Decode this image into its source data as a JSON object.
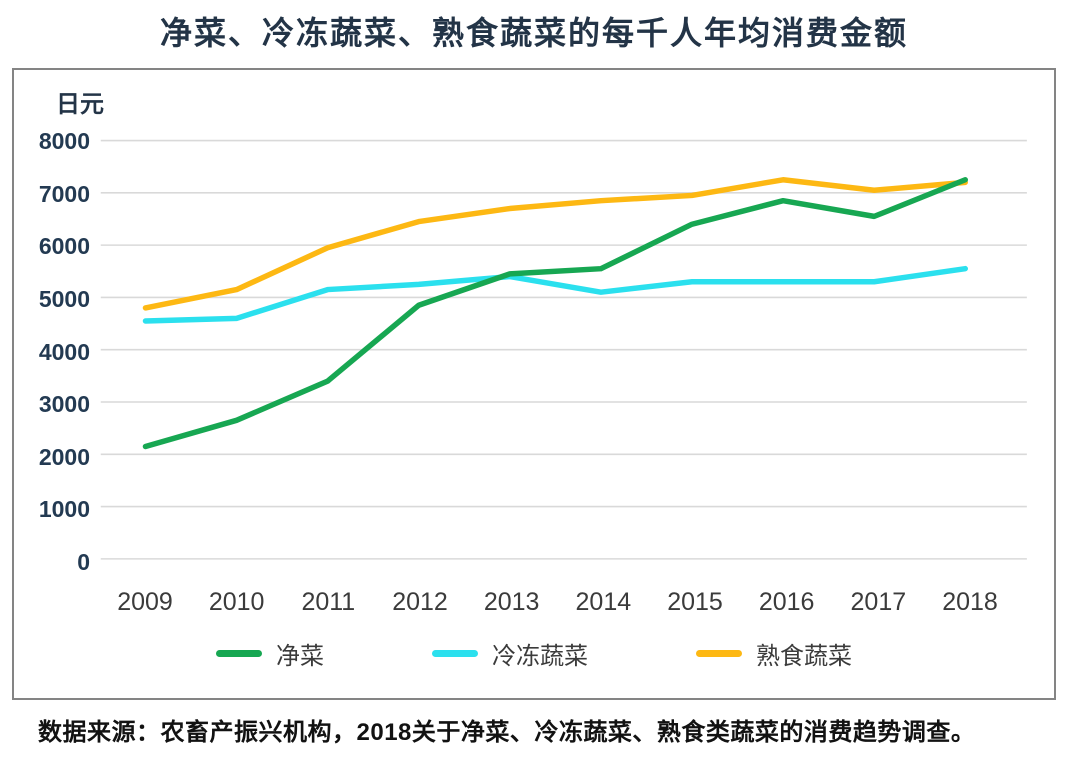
{
  "title": "净菜、冷冻蔬菜、熟食蔬菜的每千人年均消费金额",
  "source": "数据来源：农畜产振兴机构，2018关于净菜、冷冻蔬菜、熟食类蔬菜的消费趋势调查。",
  "colors": {
    "title_text": "#233447",
    "y_axis_text": "#233a52",
    "x_axis_text": "#3b3b3b",
    "grid": "#d9d9d9",
    "frame_border": "#848484",
    "series_green": "#17a752",
    "series_cyan": "#2be0ee",
    "series_yellow": "#fdb813"
  },
  "chart_data": {
    "type": "line",
    "title": "净菜、冷冻蔬菜、熟食蔬菜的每千人年均消费金额",
    "unit_label": "日元",
    "xlabel": "",
    "ylabel": "日元",
    "x": [
      "2009",
      "2010",
      "2011",
      "2012",
      "2013",
      "2014",
      "2015",
      "2016",
      "2017",
      "2018"
    ],
    "series": [
      {
        "name": "净菜",
        "color": "#17a752",
        "values": [
          2150,
          2650,
          3400,
          4850,
          5450,
          5550,
          6400,
          6850,
          6550,
          7250
        ]
      },
      {
        "name": "冷冻蔬菜",
        "color": "#2be0ee",
        "values": [
          4550,
          4600,
          5150,
          5250,
          5400,
          5100,
          5300,
          5300,
          5300,
          5550
        ]
      },
      {
        "name": "熟食蔬菜",
        "color": "#fdb813",
        "values": [
          4800,
          5150,
          5950,
          6450,
          6700,
          6850,
          6950,
          7250,
          7050,
          7200
        ]
      }
    ],
    "ylim": [
      0,
      8000
    ],
    "yticks": [
      0,
      1000,
      2000,
      3000,
      4000,
      5000,
      6000,
      7000,
      8000
    ],
    "grid": "horizontal",
    "legend_position": "bottom"
  }
}
